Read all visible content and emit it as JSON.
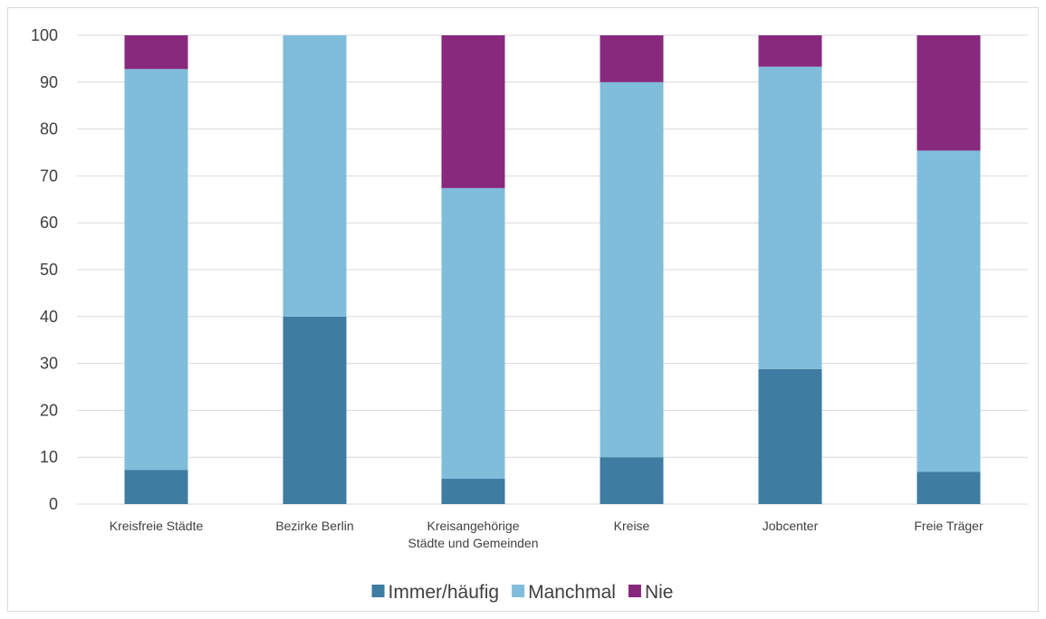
{
  "chart_data": {
    "type": "bar",
    "stacked": true,
    "categories": [
      [
        "Kreisfreie Städte"
      ],
      [
        "Bezirke Berlin"
      ],
      [
        "Kreisangehörige",
        "Städte und Gemeinden"
      ],
      [
        "Kreise"
      ],
      [
        "Jobcenter"
      ],
      [
        "Freie Träger"
      ]
    ],
    "series": [
      {
        "name": "Immer/häufig",
        "color": "#3e7ca1",
        "values": [
          7.3,
          40,
          5.4,
          10,
          28.8,
          6.9
        ]
      },
      {
        "name": "Manchmal",
        "color": "#80bddb",
        "values": [
          85.5,
          60,
          62.0,
          80,
          64.5,
          68.5
        ]
      },
      {
        "name": "Nie",
        "color": "#872a7e",
        "values": [
          7.2,
          0,
          32.6,
          10,
          6.7,
          24.6
        ]
      }
    ],
    "ylim": [
      0,
      100
    ],
    "yticks": [
      0,
      10,
      20,
      30,
      40,
      50,
      60,
      70,
      80,
      90,
      100
    ],
    "grid": true,
    "legend_position": "bottom"
  }
}
